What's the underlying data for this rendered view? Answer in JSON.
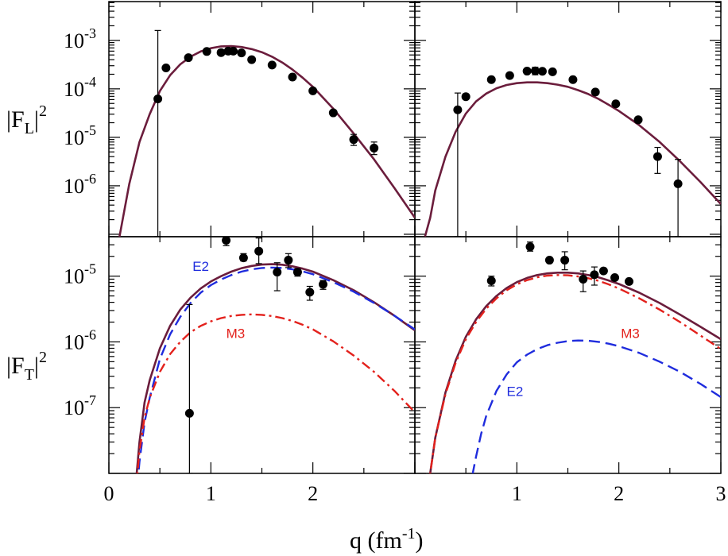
{
  "colors": {
    "total": "#6b1d3c",
    "e2": "#1f2cdd",
    "m3": "#e3211c",
    "data": "#000000"
  },
  "chart_data": {
    "type": "scatter",
    "xlabel": "q (fm-1)",
    "xlabel_parts": {
      "main": "q (fm",
      "sup": "-1",
      "close": ")"
    },
    "x_ticks": [
      0,
      1,
      2,
      3
    ],
    "x_tick_labels": [
      "0",
      "1",
      "2",
      "3"
    ],
    "xlim": [
      0,
      3
    ],
    "rows": [
      {
        "ylabel": "|F_L|^2",
        "ylabel_parts": {
          "main": "|F",
          "sub": "L",
          "close": "|",
          "sup": "2"
        },
        "ylim_log10": [
          -7.05,
          -2.2
        ],
        "y_ticks": [
          {
            "base": "10",
            "exp": "-3",
            "value": 0.001
          },
          {
            "base": "10",
            "exp": "-4",
            "value": 0.0001
          },
          {
            "base": "10",
            "exp": "-5",
            "value": 1e-05
          },
          {
            "base": "10",
            "exp": "-6",
            "value": 1e-06
          }
        ]
      },
      {
        "ylabel": "|F_T|^2",
        "ylabel_parts": {
          "main": "|F",
          "sub": "T",
          "close": "|",
          "sup": "2"
        },
        "ylim_log10": [
          -8.0,
          -4.4
        ],
        "y_ticks": [
          {
            "base": "10",
            "exp": "-5",
            "value": 1e-05
          },
          {
            "base": "10",
            "exp": "-6",
            "value": 1e-06
          },
          {
            "base": "10",
            "exp": "-7",
            "value": 1e-07
          }
        ]
      }
    ],
    "panels": [
      {
        "id": "top-left",
        "row": 0,
        "col": 0,
        "series": [
          {
            "name": "total",
            "style": "solid",
            "x": [
              0.1,
              0.15,
              0.2,
              0.3,
              0.4,
              0.5,
              0.6,
              0.7,
              0.8,
              0.9,
              1.0,
              1.1,
              1.2,
              1.3,
              1.4,
              1.5,
              1.6,
              1.7,
              1.8,
              1.9,
              2.0,
              2.2,
              2.4,
              2.6,
              2.8,
              3.0
            ],
            "y": [
              8e-08,
              3e-07,
              1.1e-06,
              8e-06,
              3e-05,
              9e-05,
              0.00019,
              0.00032,
              0.00046,
              0.00059,
              0.00069,
              0.00075,
              0.00076,
              0.00073,
              0.00066,
              0.00057,
              0.00046,
              0.00035,
              0.00025,
              0.00017,
              0.00011,
              3.9e-05,
              1.2e-05,
              3.5e-06,
              9e-07,
              2.2e-07
            ]
          }
        ],
        "points": [
          {
            "x": 0.48,
            "y": 6.2e-05,
            "err_lo": 9e-08,
            "err_hi": 0.0016
          },
          {
            "x": 0.56,
            "y": 0.00027
          },
          {
            "x": 0.78,
            "y": 0.00044
          },
          {
            "x": 0.96,
            "y": 0.00059
          },
          {
            "x": 1.1,
            "y": 0.00056
          },
          {
            "x": 1.17,
            "y": 0.0006,
            "err_lo": 0.00052,
            "err_hi": 0.00069
          },
          {
            "x": 1.22,
            "y": 0.0006
          },
          {
            "x": 1.3,
            "y": 0.00055
          },
          {
            "x": 1.4,
            "y": 0.0004
          },
          {
            "x": 1.6,
            "y": 0.00031
          },
          {
            "x": 1.8,
            "y": 0.000175
          },
          {
            "x": 2.0,
            "y": 9.1e-05
          },
          {
            "x": 2.2,
            "y": 3.2e-05
          },
          {
            "x": 2.4,
            "y": 9e-06,
            "err_lo": 6.8e-06,
            "err_hi": 1.15e-05
          },
          {
            "x": 2.6,
            "y": 6e-06,
            "err_lo": 4.4e-06,
            "err_hi": 8e-06
          }
        ]
      },
      {
        "id": "top-right",
        "row": 0,
        "col": 1,
        "series": [
          {
            "name": "total",
            "style": "solid",
            "x": [
              0.1,
              0.15,
              0.2,
              0.3,
              0.4,
              0.5,
              0.6,
              0.7,
              0.8,
              0.9,
              1.0,
              1.1,
              1.2,
              1.3,
              1.4,
              1.5,
              1.6,
              1.7,
              1.8,
              1.9,
              2.0,
              2.2,
              2.4,
              2.6,
              2.8,
              3.0
            ],
            "y": [
              9e-08,
              2.2e-07,
              8e-07,
              4e-06,
              1.3e-05,
              3.1e-05,
              5.5e-05,
              8e-05,
              0.000103,
              0.00012,
              0.000131,
              0.000136,
              0.000136,
              0.000131,
              0.000122,
              0.00011,
              9.4e-05,
              7.8e-05,
              6.2e-05,
              4.7e-05,
              3.5e-05,
              1.78e-05,
              8e-06,
              3.2e-06,
              1.2e-06,
              4.2e-07
            ]
          }
        ],
        "points": [
          {
            "x": 0.42,
            "y": 3.7e-05,
            "err_lo": 9e-08,
            "err_hi": 8.2e-05
          },
          {
            "x": 0.5,
            "y": 6.9e-05
          },
          {
            "x": 0.75,
            "y": 0.000155
          },
          {
            "x": 0.93,
            "y": 0.000188
          },
          {
            "x": 1.1,
            "y": 0.000232
          },
          {
            "x": 1.18,
            "y": 0.000235,
            "err_lo": 0.000195,
            "err_hi": 0.00028
          },
          {
            "x": 1.25,
            "y": 0.00023
          },
          {
            "x": 1.35,
            "y": 0.000225
          },
          {
            "x": 1.55,
            "y": 0.000155
          },
          {
            "x": 1.77,
            "y": 8.6e-05
          },
          {
            "x": 1.97,
            "y": 4.9e-05
          },
          {
            "x": 2.19,
            "y": 2.3e-05
          },
          {
            "x": 2.38,
            "y": 4e-06,
            "err_lo": 1.8e-06,
            "err_hi": 6.2e-06
          },
          {
            "x": 2.58,
            "y": 1.1e-06,
            "err_lo": 9e-08,
            "err_hi": 3.5e-06
          }
        ]
      },
      {
        "id": "bottom-left",
        "row": 1,
        "col": 0,
        "series": [
          {
            "name": "total",
            "style": "solid",
            "x": [
              0.25,
              0.3,
              0.35,
              0.4,
              0.5,
              0.6,
              0.7,
              0.8,
              0.9,
              1.0,
              1.1,
              1.2,
              1.3,
              1.4,
              1.5,
              1.6,
              1.7,
              1.8,
              1.9,
              2.0,
              2.2,
              2.4,
              2.6,
              2.8,
              3.0
            ],
            "y": [
              4e-09,
              3e-08,
              1.2e-07,
              2.6e-07,
              8e-07,
              1.75e-06,
              3.1e-06,
              4.7e-06,
              6.5e-06,
              8.3e-06,
              1e-05,
              1.17e-05,
              1.32e-05,
              1.43e-05,
              1.5e-05,
              1.52e-05,
              1.49e-05,
              1.41e-05,
              1.3e-05,
              1.17e-05,
              8.7e-06,
              6.1e-06,
              4e-06,
              2.5e-06,
              1.5e-06
            ]
          },
          {
            "name": "E2",
            "style": "dash",
            "x": [
              0.25,
              0.3,
              0.35,
              0.4,
              0.5,
              0.6,
              0.7,
              0.8,
              0.9,
              1.0,
              1.1,
              1.2,
              1.3,
              1.4,
              1.5,
              1.6,
              1.7,
              1.8,
              1.9,
              2.0,
              2.2,
              2.4,
              2.6,
              2.8,
              3.0
            ],
            "y": [
              2e-09,
              1.5e-08,
              6e-08,
              1.4e-07,
              5.5e-07,
              1.3e-06,
              2.4e-06,
              3.9e-06,
              5.6e-06,
              7.3e-06,
              8.9e-06,
              1.04e-05,
              1.17e-05,
              1.27e-05,
              1.33e-05,
              1.35e-05,
              1.33e-05,
              1.27e-05,
              1.18e-05,
              1.07e-05,
              8.1e-06,
              5.8e-06,
              3.9e-06,
              2.5e-06,
              1.55e-06
            ]
          },
          {
            "name": "M3",
            "style": "dashdot",
            "x": [
              0.25,
              0.3,
              0.35,
              0.4,
              0.5,
              0.6,
              0.7,
              0.8,
              0.9,
              1.0,
              1.1,
              1.2,
              1.3,
              1.4,
              1.5,
              1.6,
              1.7,
              1.8,
              1.9,
              2.0,
              2.2,
              2.4,
              2.6,
              2.8,
              3.0
            ],
            "y": [
              3e-09,
              2.2e-08,
              7e-08,
              1.4e-07,
              3.5e-07,
              6.5e-07,
              1e-06,
              1.4e-06,
              1.75e-06,
              2.05e-06,
              2.3e-06,
              2.48e-06,
              2.58e-06,
              2.62e-06,
              2.58e-06,
              2.47e-06,
              2.3e-06,
              2.08e-06,
              1.82e-06,
              1.55e-06,
              1.02e-06,
              6.2e-07,
              3.5e-07,
              1.8e-07,
              8.5e-08
            ]
          }
        ],
        "labels": [
          {
            "text": "E2",
            "x": 0.82,
            "y": 1.2e-05,
            "color_key": "e2"
          },
          {
            "text": "M3",
            "x": 1.15,
            "y": 1.15e-06,
            "color_key": "m3"
          }
        ],
        "points": [
          {
            "x": 0.79,
            "y": 8.2e-08,
            "err_lo": 1e-08,
            "err_hi": 3.7e-06
          },
          {
            "x": 1.15,
            "y": 3.5e-05,
            "err_lo": 2.9e-05,
            "err_hi": 4.5e-05
          },
          {
            "x": 1.32,
            "y": 1.9e-05,
            "err_lo": 1.7e-05,
            "err_hi": 2.2e-05
          },
          {
            "x": 1.47,
            "y": 2.4e-05,
            "err_lo": 1.55e-05,
            "err_hi": 3.8e-05
          },
          {
            "x": 1.65,
            "y": 1.15e-05,
            "err_lo": 6e-06,
            "err_hi": 1.6e-05
          },
          {
            "x": 1.76,
            "y": 1.75e-05,
            "err_lo": 1.35e-05,
            "err_hi": 2.2e-05
          },
          {
            "x": 1.85,
            "y": 1.15e-05,
            "err_lo": 1e-05,
            "err_hi": 1.3e-05
          },
          {
            "x": 1.97,
            "y": 5.7e-06,
            "err_lo": 4.3e-06,
            "err_hi": 7e-06
          },
          {
            "x": 2.1,
            "y": 7.5e-06,
            "err_lo": 6.3e-06,
            "err_hi": 8.6e-06
          }
        ]
      },
      {
        "id": "bottom-right",
        "row": 1,
        "col": 1,
        "series": [
          {
            "name": "total",
            "style": "solid",
            "x": [
              0.1,
              0.15,
              0.2,
              0.3,
              0.4,
              0.5,
              0.6,
              0.7,
              0.8,
              0.9,
              1.0,
              1.1,
              1.2,
              1.3,
              1.4,
              1.5,
              1.6,
              1.7,
              1.8,
              1.9,
              2.0,
              2.2,
              2.4,
              2.6,
              2.8,
              3.0
            ],
            "y": [
              3e-09,
              1e-08,
              3.5e-08,
              1.7e-07,
              5.2e-07,
              1.2e-06,
              2.2e-06,
              3.5e-06,
              5e-06,
              6.6e-06,
              8.1e-06,
              9.4e-06,
              1.04e-05,
              1.1e-05,
              1.13e-05,
              1.13e-05,
              1.1e-05,
              1.04e-05,
              9.6e-06,
              8.6e-06,
              7.6e-06,
              5.6e-06,
              3.9e-06,
              2.6e-06,
              1.7e-06,
              1.1e-06
            ]
          },
          {
            "name": "M3",
            "style": "dashdot",
            "x": [
              0.1,
              0.15,
              0.2,
              0.3,
              0.4,
              0.5,
              0.6,
              0.7,
              0.8,
              0.9,
              1.0,
              1.1,
              1.2,
              1.3,
              1.4,
              1.5,
              1.6,
              1.7,
              1.8,
              1.9,
              2.0,
              2.2,
              2.4,
              2.6,
              2.8,
              3.0
            ],
            "y": [
              3e-09,
              1e-08,
              3.5e-08,
              1.6e-07,
              4.8e-07,
              1.1e-06,
              2e-06,
              3.2e-06,
              4.6e-06,
              6.1e-06,
              7.5e-06,
              8.7e-06,
              9.6e-06,
              1.02e-05,
              1.04e-05,
              1.03e-05,
              9.9e-06,
              9.3e-06,
              8.5e-06,
              7.5e-06,
              6.5e-06,
              4.6e-06,
              3.1e-06,
              2e-06,
              1.25e-06,
              7.8e-07
            ]
          },
          {
            "name": "E2",
            "style": "dash",
            "x": [
              0.5,
              0.6,
              0.65,
              0.7,
              0.8,
              0.9,
              1.0,
              1.1,
              1.2,
              1.3,
              1.4,
              1.5,
              1.6,
              1.7,
              1.8,
              1.9,
              2.0,
              2.2,
              2.4,
              2.6,
              2.8,
              3.0
            ],
            "y": [
              3e-09,
              1.8e-08,
              4e-08,
              7.5e-08,
              1.8e-07,
              3.2e-07,
              4.9e-07,
              6.4e-07,
              7.8e-07,
              8.9e-07,
              9.7e-07,
              1.03e-06,
              1.05e-06,
              1.04e-06,
              1e-06,
              9.4e-07,
              8.6e-07,
              6.8e-07,
              5e-07,
              3.5e-07,
              2.3e-07,
              1.45e-07
            ]
          }
        ],
        "labels": [
          {
            "text": "M3",
            "x": 2.02,
            "y": 1.15e-06,
            "color_key": "m3"
          },
          {
            "text": "E2",
            "x": 0.9,
            "y": 1.5e-07,
            "color_key": "e2"
          }
        ],
        "points": [
          {
            "x": 0.75,
            "y": 8.5e-06,
            "err_lo": 7.1e-06,
            "err_hi": 1e-05
          },
          {
            "x": 1.13,
            "y": 2.8e-05,
            "err_lo": 2.4e-05,
            "err_hi": 3.3e-05
          },
          {
            "x": 1.32,
            "y": 1.75e-05
          },
          {
            "x": 1.47,
            "y": 1.75e-05,
            "err_lo": 1.25e-05,
            "err_hi": 2.35e-05
          },
          {
            "x": 1.65,
            "y": 9e-06,
            "err_lo": 5.8e-06,
            "err_hi": 1.2e-05
          },
          {
            "x": 1.76,
            "y": 1.05e-05,
            "err_lo": 7.3e-06,
            "err_hi": 1.38e-05
          },
          {
            "x": 1.85,
            "y": 1.2e-05
          },
          {
            "x": 1.96,
            "y": 9.5e-06
          },
          {
            "x": 2.1,
            "y": 8.3e-06
          }
        ]
      }
    ]
  }
}
